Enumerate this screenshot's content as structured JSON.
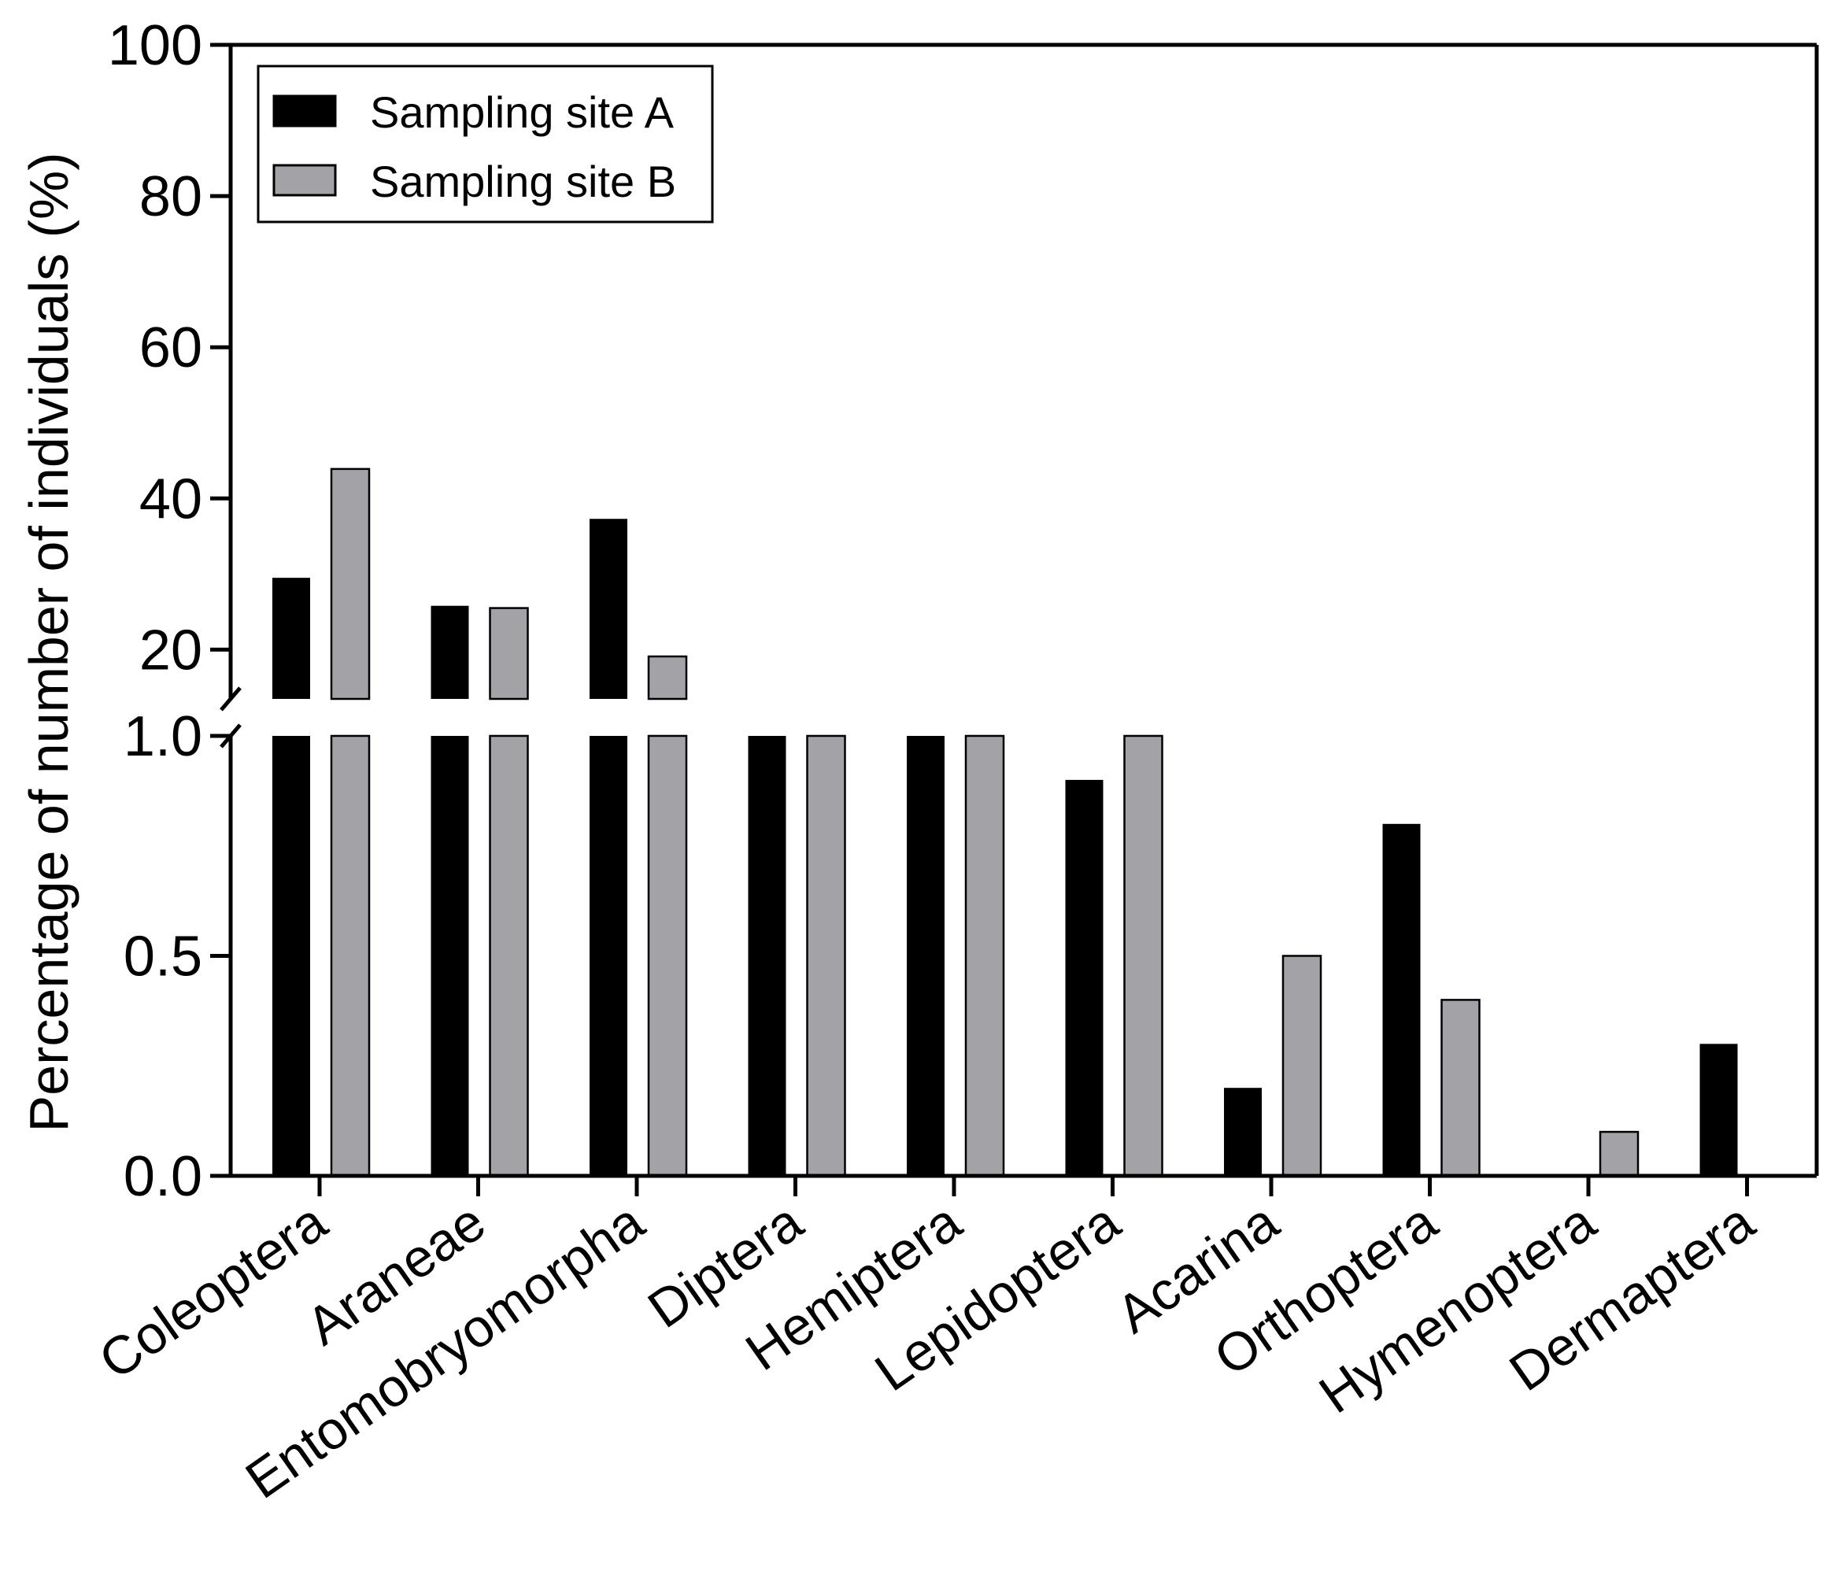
{
  "chart_data": {
    "type": "bar",
    "ylabel": "Percentage of number of individuals (%)",
    "xlabel": "",
    "categories": [
      "Coleoptera",
      "Araneae",
      "Entomobryomorpha",
      "Diptera",
      "Hemiptera",
      "Lepidoptera",
      "Acarina",
      "Orthoptera",
      "Hymenoptera",
      "Dermaptera"
    ],
    "series": [
      {
        "name": "Sampling site A",
        "color": "#000000",
        "values": [
          29.5,
          25.8,
          37.3,
          2.0,
          3.6,
          0.9,
          0.2,
          0.8,
          0.0,
          0.3
        ]
      },
      {
        "name": "Sampling site B",
        "color": "#a3a2a6",
        "values": [
          43.9,
          25.5,
          19.1,
          6.4,
          2.6,
          2.2,
          0.5,
          0.4,
          0.1,
          0.0
        ]
      }
    ],
    "y_axis": {
      "broken": true,
      "lower_segment": {
        "range": [
          0,
          1.0
        ],
        "ticks": [
          "0.0",
          "0.5",
          "1.0"
        ]
      },
      "upper_segment": {
        "range": [
          1.0,
          100
        ],
        "ticks": [
          "20",
          "40",
          "60",
          "80",
          "100"
        ]
      }
    },
    "legend_position": "top-left",
    "grid": false
  }
}
